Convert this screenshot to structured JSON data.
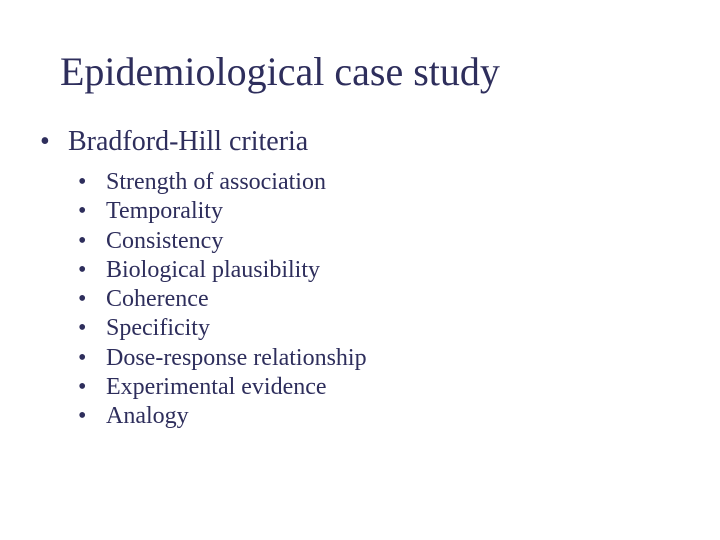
{
  "title": "Epidemiological case study",
  "level1": {
    "bullet": "•",
    "text": "Bradford-Hill criteria"
  },
  "level2": {
    "bullet": "•",
    "items": [
      "Strength of association",
      "Temporality",
      "Consistency",
      "Biological plausibility",
      "Coherence",
      "Specificity",
      "Dose-response relationship",
      "Experimental evidence",
      "Analogy"
    ]
  },
  "colors": {
    "text": "#2e2e5c",
    "background": "#ffffff"
  },
  "fonts": {
    "family": "Times New Roman",
    "title_size_pt": 40,
    "level1_size_pt": 28,
    "level2_size_pt": 24
  }
}
